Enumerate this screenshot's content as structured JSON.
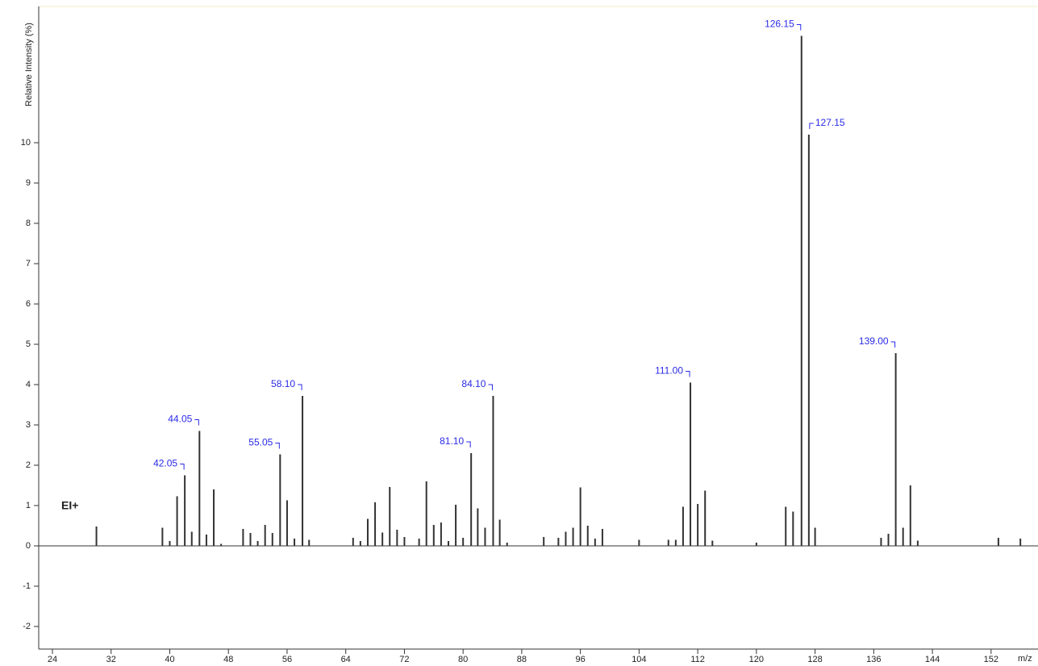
{
  "chart_data": {
    "type": "stick",
    "y_label": "Relative Intensity (%)",
    "x_label": "m/z",
    "annotation": "EI+",
    "color": "#333333",
    "label_color": "#2a2ae8",
    "xlim": [
      22.13,
      158.4
    ],
    "xticks": [
      24,
      32,
      40,
      48,
      56,
      64,
      72,
      80,
      88,
      96,
      104,
      112,
      120,
      128,
      136,
      144,
      152
    ],
    "ylim": [
      -2.56,
      13.38
    ],
    "yticks": [
      -2,
      -1,
      0,
      1,
      2,
      3,
      4,
      5,
      6,
      7,
      8,
      9,
      10
    ],
    "x": [
      30,
      39,
      40,
      41,
      42.05,
      43,
      44.05,
      45,
      46,
      47,
      50,
      51,
      52,
      53,
      54,
      55.05,
      56,
      57,
      58.1,
      59,
      65,
      66,
      67,
      68,
      69,
      70,
      71,
      72,
      74,
      75,
      76,
      77,
      78,
      79,
      80,
      81.1,
      82,
      83,
      84.1,
      85,
      86,
      91,
      93,
      94,
      95,
      96,
      97,
      98,
      99,
      104,
      108,
      109,
      110,
      111,
      112,
      113,
      114,
      120,
      124,
      125,
      126.15,
      127.15,
      128,
      137,
      138,
      139,
      140,
      141,
      142,
      153,
      156
    ],
    "values": [
      0.48,
      0.45,
      0.12,
      1.23,
      1.75,
      0.35,
      2.85,
      0.28,
      1.4,
      0.05,
      0.42,
      0.32,
      0.12,
      0.52,
      0.32,
      2.27,
      1.13,
      0.18,
      3.72,
      0.15,
      0.2,
      0.12,
      0.67,
      1.08,
      0.33,
      1.46,
      0.4,
      0.22,
      0.18,
      1.6,
      0.52,
      0.58,
      0.12,
      1.02,
      0.2,
      2.3,
      0.93,
      0.45,
      3.72,
      0.65,
      0.08,
      0.22,
      0.2,
      0.35,
      0.45,
      1.45,
      0.5,
      0.18,
      0.42,
      0.15,
      0.15,
      0.15,
      0.97,
      4.05,
      1.04,
      1.37,
      0.13,
      0.08,
      0.97,
      0.85,
      12.65,
      10.2,
      0.45,
      0.2,
      0.3,
      4.78,
      0.45,
      1.5,
      0.13,
      0.2,
      0.18
    ],
    "x_labels": [
      null,
      null,
      null,
      null,
      "42.05",
      null,
      "44.05",
      null,
      null,
      null,
      null,
      null,
      null,
      null,
      null,
      "55.05",
      null,
      null,
      "58.10",
      null,
      null,
      null,
      null,
      null,
      null,
      null,
      null,
      null,
      null,
      null,
      null,
      null,
      null,
      null,
      null,
      "81.10",
      null,
      null,
      "84.10",
      null,
      null,
      null,
      null,
      null,
      null,
      null,
      null,
      null,
      null,
      null,
      null,
      null,
      null,
      "111.00",
      null,
      null,
      null,
      null,
      null,
      null,
      "126.15",
      "127.15",
      null,
      null,
      null,
      "139.00",
      null,
      null,
      null,
      null,
      null
    ]
  }
}
